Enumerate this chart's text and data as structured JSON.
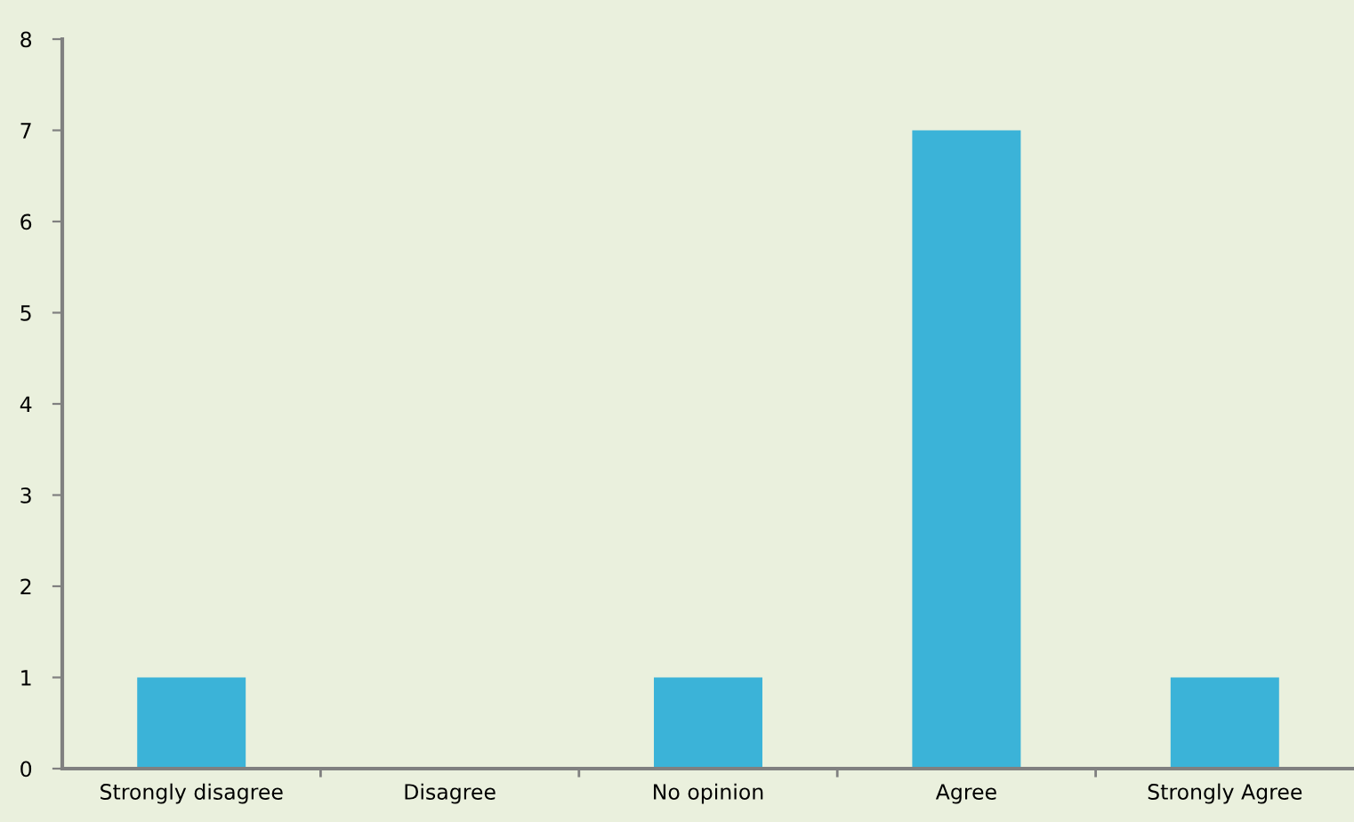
{
  "chart_data": {
    "type": "bar",
    "categories": [
      "Strongly disagree",
      "Disagree",
      "No opinion",
      "Agree",
      "Strongly Agree"
    ],
    "values": [
      1,
      0,
      1,
      7,
      1
    ],
    "color": "#3bb3d8",
    "ylim": [
      0,
      8
    ],
    "yticks": [
      0,
      1,
      2,
      3,
      4,
      5,
      6,
      7,
      8
    ],
    "grid": false,
    "legend": false
  }
}
